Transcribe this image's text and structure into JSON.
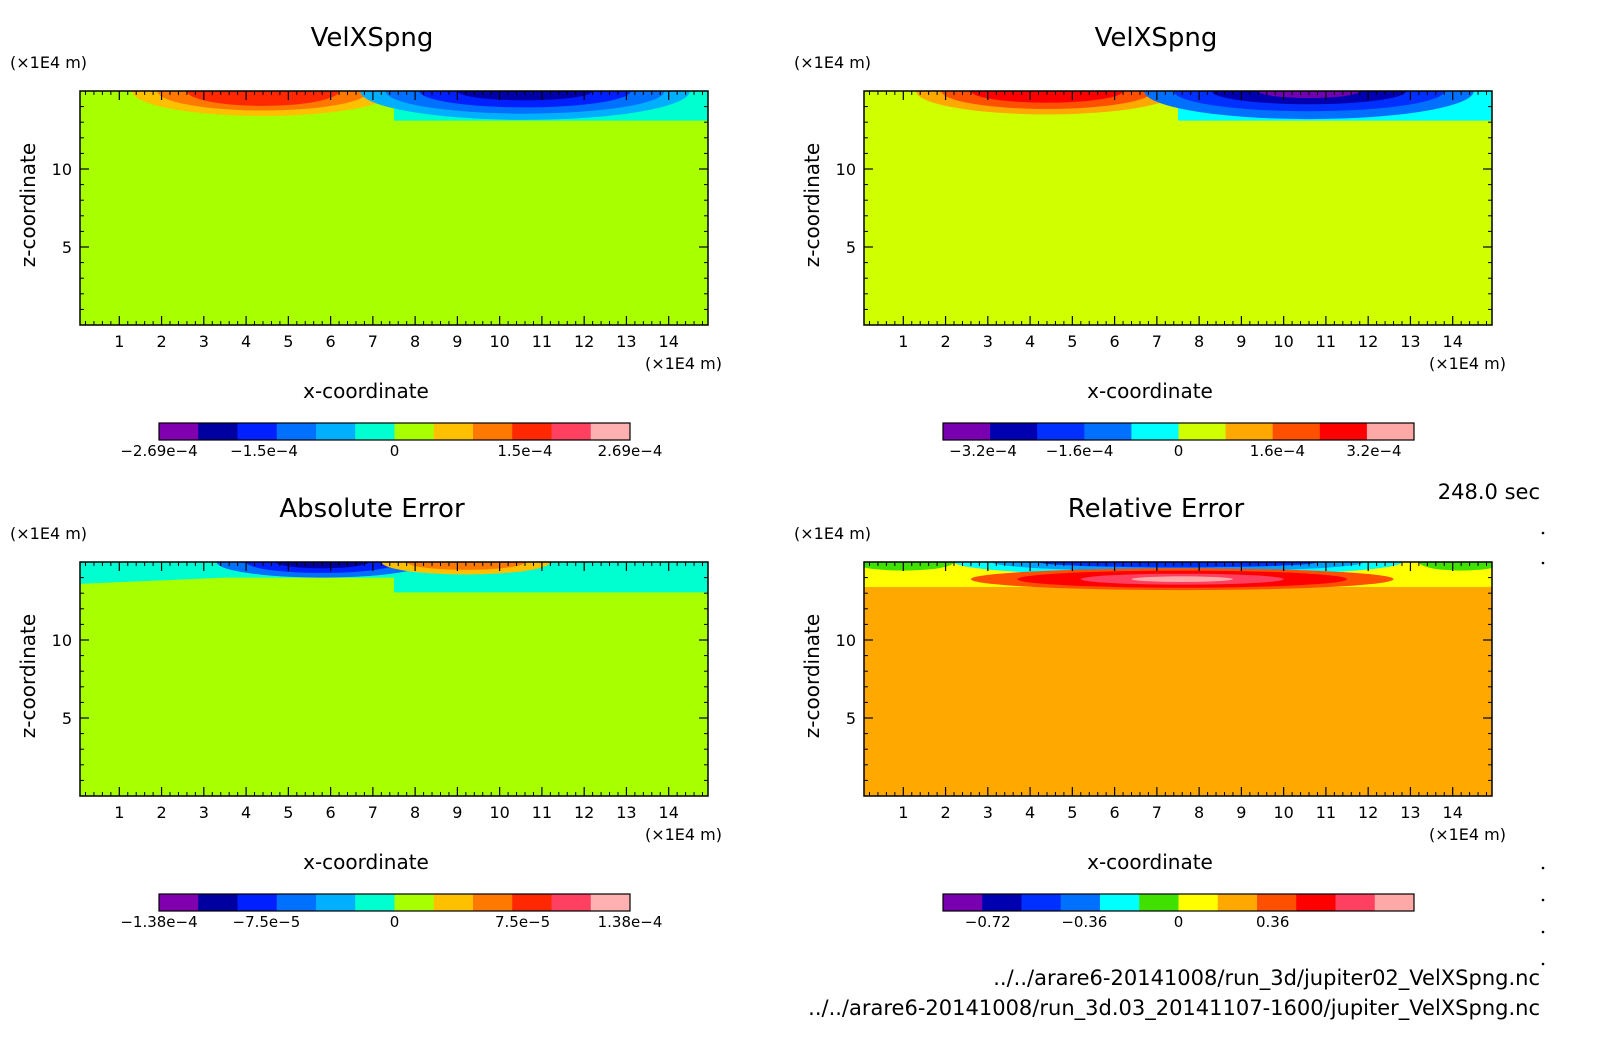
{
  "figure": {
    "time_label": "248.0 sec",
    "files": [
      "../../arare6-20141008/run_3d/jupiter02_VelXSpng.nc",
      "../../arare6-20141008/run_3d.03_20141107-1600/jupiter_VelXSpng.nc"
    ]
  },
  "chart_data": [
    {
      "type": "heatmap",
      "title": "VelXSpng",
      "xlabel": "x-coordinate",
      "ylabel": "z-coordinate",
      "x_unit": "(×1E4 m)",
      "y_unit": "(×1E4 m)",
      "xlim": [
        0.07,
        14.93
      ],
      "ylim": [
        0,
        15
      ],
      "xticks": [
        1,
        2,
        3,
        4,
        5,
        6,
        7,
        8,
        9,
        10,
        11,
        12,
        13,
        14
      ],
      "yticks": [
        5,
        10
      ],
      "background_color": "#a8ff00",
      "regions": [
        {
          "kind": "rect",
          "x": [
            7.5,
            14.93
          ],
          "z": [
            13.1,
            15
          ],
          "color": "#00ffd0"
        },
        {
          "kind": "ellipse",
          "cx": 4.4,
          "cz": 15,
          "rx": 3.1,
          "rz": 1.6,
          "color": "#ffc000"
        },
        {
          "kind": "ellipse",
          "cx": 4.4,
          "cz": 15,
          "rx": 2.5,
          "rz": 1.25,
          "color": "#ff7800"
        },
        {
          "kind": "ellipse",
          "cx": 4.4,
          "cz": 15,
          "rx": 1.8,
          "rz": 0.95,
          "color": "#ff2800"
        },
        {
          "kind": "ellipse",
          "cx": 10.6,
          "cz": 15,
          "rx": 3.9,
          "rz": 1.85,
          "color": "#00b0ff"
        },
        {
          "kind": "ellipse",
          "cx": 10.6,
          "cz": 15,
          "rx": 3.3,
          "rz": 1.45,
          "color": "#0070ff"
        },
        {
          "kind": "ellipse",
          "cx": 10.6,
          "cz": 15,
          "rx": 2.5,
          "rz": 1.05,
          "color": "#0020ff"
        },
        {
          "kind": "ellipse",
          "cx": 10.6,
          "cz": 15,
          "rx": 1.6,
          "rz": 0.6,
          "color": "#0000a8"
        }
      ],
      "colorbar": {
        "colors": [
          "#8000b0",
          "#0000a0",
          "#0020ff",
          "#0070ff",
          "#00b0ff",
          "#00ffd0",
          "#a8ff00",
          "#ffc000",
          "#ff7800",
          "#ff2800",
          "#ff4060",
          "#ffb0b0"
        ],
        "labels": [
          {
            "text": "−2.69e−4",
            "pos": 0
          },
          {
            "text": "−1.5e−4",
            "pos": 0.223
          },
          {
            "text": "0",
            "pos": 0.5
          },
          {
            "text": "1.5e−4",
            "pos": 0.777
          },
          {
            "text": "2.69e−4",
            "pos": 1
          }
        ]
      }
    },
    {
      "type": "heatmap",
      "title": "VelXSpng",
      "xlabel": "x-coordinate",
      "ylabel": "z-coordinate",
      "x_unit": "(×1E4 m)",
      "y_unit": "(×1E4 m)",
      "xlim": [
        0.07,
        14.93
      ],
      "ylim": [
        0,
        15
      ],
      "xticks": [
        1,
        2,
        3,
        4,
        5,
        6,
        7,
        8,
        9,
        10,
        11,
        12,
        13,
        14
      ],
      "yticks": [
        5,
        10
      ],
      "background_color": "#d0ff00",
      "regions": [
        {
          "kind": "rect",
          "x": [
            7.5,
            14.93
          ],
          "z": [
            13.1,
            15
          ],
          "color": "#00ffff"
        },
        {
          "kind": "ellipse",
          "cx": 4.4,
          "cz": 15,
          "rx": 3.1,
          "rz": 1.5,
          "color": "#ffa800"
        },
        {
          "kind": "ellipse",
          "cx": 4.4,
          "cz": 15,
          "rx": 2.5,
          "rz": 1.15,
          "color": "#ff5000"
        },
        {
          "kind": "ellipse",
          "cx": 4.4,
          "cz": 15,
          "rx": 1.8,
          "rz": 0.75,
          "color": "#ff0000"
        },
        {
          "kind": "ellipse",
          "cx": 10.6,
          "cz": 15,
          "rx": 3.9,
          "rz": 1.8,
          "color": "#0070ff"
        },
        {
          "kind": "ellipse",
          "cx": 10.6,
          "cz": 15,
          "rx": 3.2,
          "rz": 1.3,
          "color": "#0030ff"
        },
        {
          "kind": "ellipse",
          "cx": 10.6,
          "cz": 15,
          "rx": 2.3,
          "rz": 0.85,
          "color": "#0000b0"
        },
        {
          "kind": "ellipse",
          "cx": 10.6,
          "cz": 15,
          "rx": 1.2,
          "rz": 0.45,
          "color": "#7000b0"
        }
      ],
      "colorbar": {
        "colors": [
          "#7800b0",
          "#0000b0",
          "#0030ff",
          "#0070ff",
          "#00ffff",
          "#d0ff00",
          "#ffa800",
          "#ff5000",
          "#ff0000",
          "#ffa8a8"
        ],
        "labels": [
          {
            "text": "−3.2e−4",
            "pos": 0.085
          },
          {
            "text": "−1.6e−4",
            "pos": 0.29
          },
          {
            "text": "0",
            "pos": 0.5
          },
          {
            "text": "1.6e−4",
            "pos": 0.71
          },
          {
            "text": "3.2e−4",
            "pos": 0.915
          }
        ]
      }
    },
    {
      "type": "heatmap",
      "title": "Absolute Error",
      "xlabel": "x-coordinate",
      "ylabel": "z-coordinate",
      "x_unit": "(×1E4 m)",
      "y_unit": "(×1E4 m)",
      "xlim": [
        0.07,
        14.93
      ],
      "ylim": [
        0,
        15
      ],
      "xticks": [
        1,
        2,
        3,
        4,
        5,
        6,
        7,
        8,
        9,
        10,
        11,
        12,
        13,
        14
      ],
      "yticks": [
        5,
        10
      ],
      "background_color": "#a8ff00",
      "regions": [
        {
          "kind": "poly",
          "points": [
            [
              0.07,
              15
            ],
            [
              7.5,
              15
            ],
            [
              7.5,
              14.0
            ],
            [
              3.5,
              14.0
            ],
            [
              0.07,
              13.6
            ]
          ],
          "color": "#00ffd0"
        },
        {
          "kind": "poly",
          "points": [
            [
              7.5,
              15
            ],
            [
              14.93,
              15
            ],
            [
              14.93,
              13.05
            ],
            [
              7.5,
              13.05
            ]
          ],
          "color": "#00ffd0"
        },
        {
          "kind": "ellipse",
          "cx": 5.8,
          "cz": 15,
          "rx": 2.5,
          "rz": 1.0,
          "color": "#0070ff"
        },
        {
          "kind": "ellipse",
          "cx": 5.8,
          "cz": 15,
          "rx": 1.8,
          "rz": 0.7,
          "color": "#0020ff"
        },
        {
          "kind": "ellipse",
          "cx": 5.8,
          "cz": 15,
          "rx": 1.1,
          "rz": 0.4,
          "color": "#0000a0"
        },
        {
          "kind": "ellipse",
          "cx": 9.2,
          "cz": 15,
          "rx": 2.0,
          "rz": 0.8,
          "color": "#ffc000"
        },
        {
          "kind": "ellipse",
          "cx": 9.2,
          "cz": 15,
          "rx": 1.4,
          "rz": 0.5,
          "color": "#ff7800"
        }
      ],
      "colorbar": {
        "colors": [
          "#8000b0",
          "#0000a0",
          "#0020ff",
          "#0070ff",
          "#00b0ff",
          "#00ffd0",
          "#a8ff00",
          "#ffc000",
          "#ff7800",
          "#ff2800",
          "#ff4060",
          "#ffb0b0"
        ],
        "labels": [
          {
            "text": "−1.38e−4",
            "pos": 0
          },
          {
            "text": "−7.5e−5",
            "pos": 0.228
          },
          {
            "text": "0",
            "pos": 0.5
          },
          {
            "text": "7.5e−5",
            "pos": 0.772
          },
          {
            "text": "1.38e−4",
            "pos": 1
          }
        ]
      }
    },
    {
      "type": "heatmap",
      "title": "Relative Error",
      "xlabel": "x-coordinate",
      "ylabel": "z-coordinate",
      "x_unit": "(×1E4 m)",
      "y_unit": "(×1E4 m)",
      "xlim": [
        0.07,
        14.93
      ],
      "ylim": [
        0,
        15
      ],
      "xticks": [
        1,
        2,
        3,
        4,
        5,
        6,
        7,
        8,
        9,
        10,
        11,
        12,
        13,
        14
      ],
      "yticks": [
        5,
        10
      ],
      "background_color": "#ffa800",
      "regions": [
        {
          "kind": "rect",
          "x": [
            0.07,
            14.93
          ],
          "z": [
            13.4,
            15
          ],
          "color": "#ffff00"
        },
        {
          "kind": "ellipse",
          "cx": 1.0,
          "cz": 15,
          "rx": 1.2,
          "rz": 0.55,
          "color": "#40e000"
        },
        {
          "kind": "ellipse",
          "cx": 14.2,
          "cz": 15,
          "rx": 1.0,
          "rz": 0.55,
          "color": "#40e000"
        },
        {
          "kind": "ellipse",
          "cx": 7.5,
          "cz": 15,
          "rx": 5.3,
          "rz": 0.9,
          "color": "#00ffff"
        },
        {
          "kind": "ellipse",
          "cx": 7.5,
          "cz": 15,
          "rx": 4.4,
          "rz": 0.6,
          "color": "#00a0ff"
        },
        {
          "kind": "ellipse",
          "cx": 7.5,
          "cz": 15,
          "rx": 3.3,
          "rz": 0.35,
          "color": "#0030ff"
        },
        {
          "kind": "ellipse",
          "cx": 7.6,
          "cz": 13.9,
          "rx": 5.0,
          "rz": 0.7,
          "color": "#ff5000"
        },
        {
          "kind": "ellipse",
          "cx": 7.6,
          "cz": 13.9,
          "rx": 3.9,
          "rz": 0.55,
          "color": "#ff0000"
        },
        {
          "kind": "ellipse",
          "cx": 7.6,
          "cz": 13.9,
          "rx": 2.4,
          "rz": 0.35,
          "color": "#ff4060"
        },
        {
          "kind": "ellipse",
          "cx": 7.6,
          "cz": 13.9,
          "rx": 1.2,
          "rz": 0.18,
          "color": "#ffa8a8"
        }
      ],
      "colorbar": {
        "colors": [
          "#7800b0",
          "#0000b0",
          "#0030ff",
          "#0070ff",
          "#00ffff",
          "#40e000",
          "#ffff00",
          "#ffa800",
          "#ff5000",
          "#ff0000",
          "#ff4060",
          "#ffa8a8"
        ],
        "labels": [
          {
            "text": "−0.72",
            "pos": 0.095
          },
          {
            "text": "−0.36",
            "pos": 0.3
          },
          {
            "text": "0",
            "pos": 0.5
          },
          {
            "text": "0.36",
            "pos": 0.7
          }
        ]
      }
    }
  ]
}
